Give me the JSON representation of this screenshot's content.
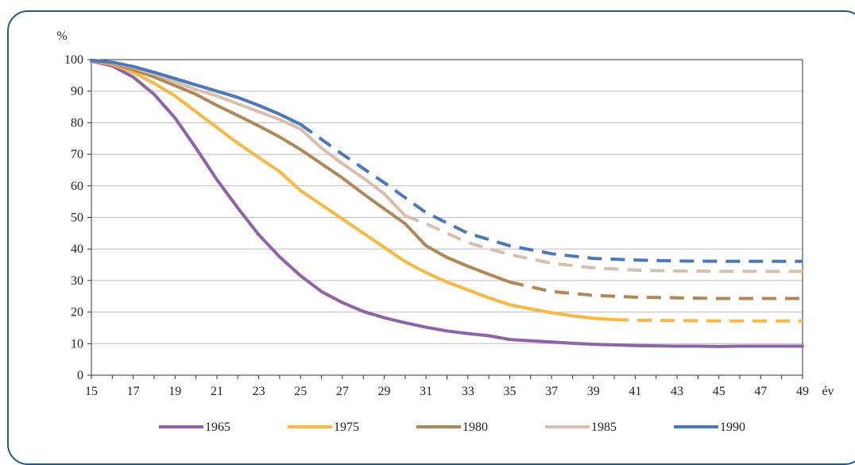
{
  "chart_data": {
    "type": "line",
    "ylabel": "%",
    "xlabel": "év",
    "xlim": [
      15,
      49
    ],
    "ylim": [
      0,
      100
    ],
    "x_ticks": [
      15,
      17,
      19,
      21,
      23,
      25,
      27,
      29,
      31,
      33,
      35,
      37,
      39,
      41,
      43,
      45,
      47,
      49
    ],
    "y_ticks": [
      0,
      10,
      20,
      30,
      40,
      50,
      60,
      70,
      80,
      90,
      100
    ],
    "grid": "horizontal",
    "legend_position": "bottom",
    "series": [
      {
        "name": "1965",
        "color": "#8e63a8",
        "observed": [
          [
            15,
            99.5
          ],
          [
            16,
            98
          ],
          [
            17,
            94.5
          ],
          [
            18,
            89
          ],
          [
            19,
            81.5
          ],
          [
            20,
            72
          ],
          [
            21,
            62
          ],
          [
            22,
            53
          ],
          [
            23,
            44.5
          ],
          [
            24,
            37.5
          ],
          [
            25,
            31.5
          ],
          [
            26,
            26.5
          ],
          [
            27,
            23
          ],
          [
            28,
            20.2
          ],
          [
            29,
            18.2
          ],
          [
            30,
            16.6
          ],
          [
            31,
            15.2
          ],
          [
            32,
            14
          ],
          [
            33,
            13.2
          ],
          [
            34,
            12.5
          ],
          [
            35,
            11.3
          ],
          [
            36,
            10.9
          ],
          [
            37,
            10.5
          ],
          [
            38,
            10.1
          ],
          [
            39,
            9.8
          ],
          [
            40,
            9.6
          ],
          [
            41,
            9.4
          ],
          [
            42,
            9.3
          ],
          [
            43,
            9.2
          ],
          [
            44,
            9.2
          ],
          [
            45,
            9.1
          ],
          [
            46,
            9.2
          ],
          [
            47,
            9.2
          ],
          [
            48,
            9.2
          ],
          [
            49,
            9.2
          ]
        ],
        "projected": []
      },
      {
        "name": "1975",
        "color": "#fbb83d",
        "observed": [
          [
            15,
            99.5
          ],
          [
            16,
            98.5
          ],
          [
            17,
            96
          ],
          [
            18,
            92.5
          ],
          [
            19,
            88.5
          ],
          [
            20,
            83.5
          ],
          [
            21,
            78.5
          ],
          [
            22,
            73.5
          ],
          [
            23,
            69
          ],
          [
            24,
            64.5
          ],
          [
            25,
            58.5
          ],
          [
            26,
            54
          ],
          [
            27,
            49.5
          ],
          [
            28,
            45
          ],
          [
            29,
            40.5
          ],
          [
            30,
            36
          ],
          [
            31,
            32.5
          ],
          [
            32,
            29.5
          ],
          [
            33,
            27
          ],
          [
            34,
            24.5
          ],
          [
            35,
            22.3
          ],
          [
            36,
            21
          ],
          [
            37,
            19.8
          ],
          [
            38,
            18.8
          ],
          [
            39,
            18
          ],
          [
            40,
            17.6
          ]
        ],
        "projected": [
          [
            40,
            17.6
          ],
          [
            41,
            17.4
          ],
          [
            43,
            17.3
          ],
          [
            45,
            17.2
          ],
          [
            47,
            17.2
          ],
          [
            49,
            17.2
          ]
        ]
      },
      {
        "name": "1980",
        "color": "#b08755",
        "observed": [
          [
            15,
            99.5
          ],
          [
            16,
            98.8
          ],
          [
            17,
            96.8
          ],
          [
            18,
            94.5
          ],
          [
            19,
            91.8
          ],
          [
            20,
            89
          ],
          [
            21,
            85.5
          ],
          [
            22,
            82.3
          ],
          [
            23,
            79
          ],
          [
            24,
            75.5
          ],
          [
            25,
            71.5
          ],
          [
            26,
            67
          ],
          [
            27,
            62.5
          ],
          [
            28,
            57.5
          ],
          [
            29,
            52.7
          ],
          [
            30,
            48
          ],
          [
            31,
            41
          ],
          [
            32,
            37.3
          ],
          [
            33,
            34.5
          ],
          [
            34,
            32
          ],
          [
            35,
            29.5
          ]
        ],
        "projected": [
          [
            35,
            29.5
          ],
          [
            37,
            26.5
          ],
          [
            39,
            25.3
          ],
          [
            41,
            24.7
          ],
          [
            43,
            24.5
          ],
          [
            45,
            24.3
          ],
          [
            47,
            24.3
          ],
          [
            49,
            24.3
          ]
        ]
      },
      {
        "name": "1985",
        "color": "#d8bfac",
        "observed": [
          [
            15,
            99.8
          ],
          [
            16,
            99
          ],
          [
            17,
            97.5
          ],
          [
            18,
            95.5
          ],
          [
            19,
            93
          ],
          [
            20,
            90.5
          ],
          [
            21,
            88.5
          ],
          [
            22,
            86
          ],
          [
            23,
            83.5
          ],
          [
            24,
            81
          ],
          [
            25,
            78
          ],
          [
            26,
            72
          ],
          [
            27,
            67
          ],
          [
            28,
            62.5
          ],
          [
            29,
            57.5
          ],
          [
            30,
            50.5
          ]
        ],
        "projected": [
          [
            30,
            50.5
          ],
          [
            31,
            48
          ],
          [
            33,
            42
          ],
          [
            35,
            38.2
          ],
          [
            37,
            35.5
          ],
          [
            39,
            34
          ],
          [
            41,
            33.3
          ],
          [
            43,
            33
          ],
          [
            45,
            32.9
          ],
          [
            47,
            32.9
          ],
          [
            49,
            32.9
          ]
        ]
      },
      {
        "name": "1990",
        "color": "#4a78c0",
        "observed": [
          [
            15,
            99.8
          ],
          [
            16,
            99.2
          ],
          [
            17,
            97.8
          ],
          [
            18,
            96
          ],
          [
            19,
            94
          ],
          [
            20,
            92
          ],
          [
            21,
            90
          ],
          [
            22,
            88
          ],
          [
            23,
            85.5
          ],
          [
            24,
            82.7
          ],
          [
            25,
            79.5
          ]
        ],
        "projected": [
          [
            25,
            79.5
          ],
          [
            27,
            70
          ],
          [
            29,
            61
          ],
          [
            31,
            51.5
          ],
          [
            33,
            45
          ],
          [
            35,
            41
          ],
          [
            37,
            38.5
          ],
          [
            39,
            37
          ],
          [
            41,
            36.5
          ],
          [
            43,
            36.2
          ],
          [
            45,
            36.1
          ],
          [
            47,
            36.1
          ],
          [
            49,
            36.1
          ]
        ]
      }
    ]
  }
}
